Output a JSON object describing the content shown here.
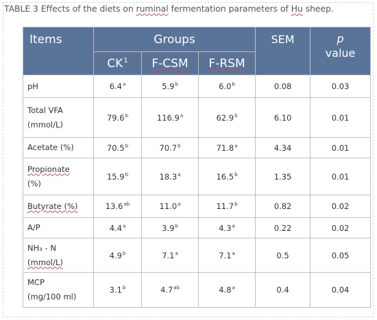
{
  "caption": {
    "prefix": "TABLE 3 Effects of the diets on ",
    "word1": "ruminal",
    "middle": " fermentation parameters of ",
    "word2": "Hu",
    "suffix": " sheep."
  },
  "header": {
    "items": "Items",
    "groups": "Groups",
    "sem": "SEM",
    "p_symbol": "p",
    "p_value": "value",
    "ck": "CK",
    "ck_sup": "1",
    "fcsm": "F-CSM",
    "frsm": "F-RSM"
  },
  "rows": [
    {
      "l1": "pH",
      "ck": "6.4",
      "ck_s": "a",
      "fcsm": "5.9",
      "fcsm_s": "b",
      "frsm": "6.0",
      "frsm_s": "b",
      "sem": "0.08",
      "p": "0.03"
    },
    {
      "l1": "Total  VFA",
      "l2": "(mmol/L)",
      "ck": "79.6",
      "ck_s": "b",
      "fcsm": "116.9",
      "fcsm_s": "a",
      "frsm": "62.9",
      "frsm_s": "b",
      "sem": "6.10",
      "p": "0.01"
    },
    {
      "l1": "Acetate (%)",
      "ck": "70.5",
      "ck_s": "b",
      "fcsm": "70.7",
      "fcsm_s": "b",
      "frsm": "71.8",
      "frsm_s": "a",
      "sem": "4.34",
      "p": "0.01"
    },
    {
      "l1": "Propionate",
      "l2": "(%)",
      "ck": "15.9",
      "ck_s": "b",
      "fcsm": "18.3",
      "fcsm_s": "a",
      "frsm": "16.5",
      "frsm_s": "b",
      "sem": "1.35",
      "p": "0.01"
    },
    {
      "l1": "Butyrate (%)",
      "ck": "13.6",
      "ck_s": "ab",
      "fcsm": "11.0",
      "fcsm_s": "a",
      "frsm": "11.7",
      "frsm_s": "b",
      "sem": "0.82",
      "p": "0.02"
    },
    {
      "l1": "A/P",
      "ck": "4.4",
      "ck_s": "a",
      "fcsm": "3.9",
      "fcsm_s": "b",
      "frsm": "4.3",
      "frsm_s": "a",
      "sem": "0.22",
      "p": "0.02"
    },
    {
      "l1": "NH₃ - N",
      "l2": "(mmol/L)",
      "ck": "4.9",
      "ck_s": "b",
      "fcsm": "7.1",
      "fcsm_s": "a",
      "frsm": "7.1",
      "frsm_s": "a",
      "sem": "0.5",
      "p": "0.05"
    },
    {
      "l1": "MCP",
      "l2": "(mg/100 ml)",
      "ck": "3.1",
      "ck_s": "b",
      "fcsm": "4.7",
      "fcsm_s": "ab",
      "frsm": "4.8",
      "frsm_s": "a",
      "sem": "0.4",
      "p": "0.04"
    }
  ]
}
